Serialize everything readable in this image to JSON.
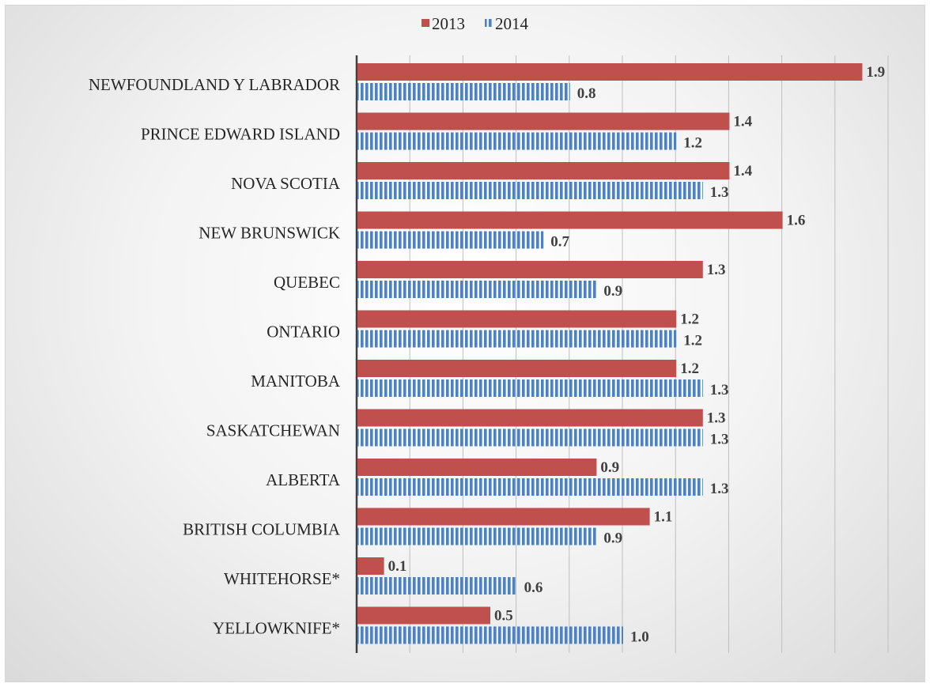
{
  "chart_data": {
    "type": "bar",
    "orientation": "horizontal",
    "title": "",
    "xlabel": "",
    "ylabel": "",
    "xlim": [
      0,
      2.0
    ],
    "grid": true,
    "legend_position": "top",
    "categories": [
      "NEWFOUNDLAND Y LABRADOR",
      "PRINCE EDWARD ISLAND",
      "NOVA SCOTIA",
      "NEW BRUNSWICK",
      "QUEBEC",
      "ONTARIO",
      "MANITOBA",
      "SASKATCHEWAN",
      "ALBERTA",
      "BRITISH COLUMBIA",
      "WHITEHORSE*",
      "YELLOWKNIFE*"
    ],
    "series": [
      {
        "name": "2013",
        "color": "#c0504d",
        "pattern": "solid",
        "values": [
          1.9,
          1.4,
          1.4,
          1.6,
          1.3,
          1.2,
          1.2,
          1.3,
          0.9,
          1.1,
          0.1,
          0.5
        ],
        "labels": [
          "1.9",
          "1.4",
          "1.4",
          "1.6",
          "1.3",
          "1.2",
          "1.2",
          "1.3",
          "0.9",
          "1.1",
          "0.1",
          "0.5"
        ]
      },
      {
        "name": "2014",
        "color": "#4f81bd",
        "pattern": "vertical-stripes",
        "values": [
          0.8,
          1.2,
          1.3,
          0.7,
          0.9,
          1.2,
          1.3,
          1.3,
          1.3,
          0.9,
          0.6,
          1.0
        ],
        "labels": [
          "0.8",
          "1.2",
          "1.3",
          "0.7",
          "0.9",
          "1.2",
          "1.3",
          "1.3",
          "1.3",
          "0.9",
          "0.6",
          "1.0"
        ]
      }
    ]
  }
}
